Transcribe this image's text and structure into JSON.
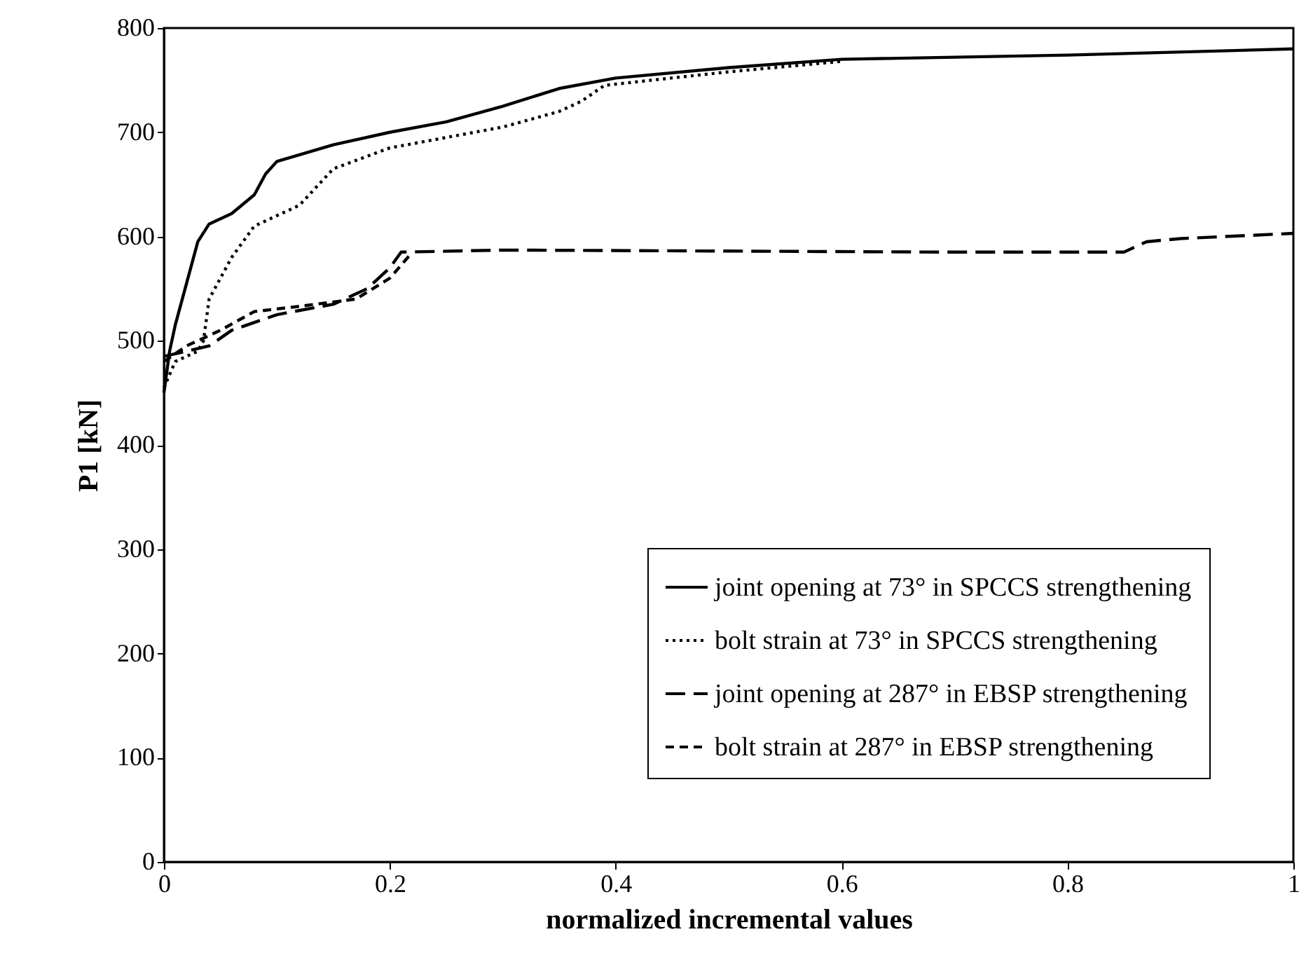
{
  "chart_data": {
    "type": "line",
    "xlabel": "normalized incremental values",
    "ylabel": "P1 [kN]",
    "xlim": [
      0,
      1
    ],
    "xticks": [
      0,
      0.2,
      0.4,
      0.6,
      0.8,
      1
    ],
    "ylim": [
      0,
      800
    ],
    "yticks": [
      0,
      100,
      200,
      300,
      400,
      500,
      600,
      700,
      800
    ],
    "grid": false,
    "legend": "bottom right",
    "marker": "none",
    "series": [
      {
        "name": "joint opening at 73° in SPCCS strengthening",
        "color": "#000000",
        "line_style": "solid",
        "x": [
          0,
          0.005,
          0.01,
          0.02,
          0.03,
          0.04,
          0.06,
          0.08,
          0.09,
          0.1,
          0.15,
          0.2,
          0.25,
          0.3,
          0.35,
          0.4,
          0.5,
          0.6,
          0.8,
          1
        ],
        "values": [
          450,
          490,
          515,
          555,
          595,
          612,
          622,
          640,
          660,
          672,
          688,
          700,
          710,
          725,
          742,
          752,
          762,
          770,
          774,
          780
        ]
      },
      {
        "name": "bolt strain at 73° in SPCCS strengthening",
        "color": "#000000",
        "line_style": "dotted",
        "x": [
          0,
          0.01,
          0.03,
          0.035,
          0.04,
          0.06,
          0.08,
          0.1,
          0.12,
          0.15,
          0.2,
          0.25,
          0.3,
          0.35,
          0.37,
          0.39,
          0.5,
          0.6
        ],
        "values": [
          455,
          480,
          490,
          500,
          540,
          580,
          610,
          620,
          630,
          665,
          685,
          695,
          705,
          720,
          730,
          745,
          758,
          768
        ]
      },
      {
        "name": "joint opening at 287° in EBSP strengthening",
        "color": "#000000",
        "line_style": "dashed",
        "x": [
          0,
          0.02,
          0.04,
          0.06,
          0.1,
          0.15,
          0.18,
          0.2,
          0.21,
          0.3,
          0.5,
          0.7,
          0.85,
          0.87,
          0.9,
          1
        ],
        "values": [
          485,
          490,
          495,
          510,
          525,
          535,
          550,
          570,
          585,
          587,
          586,
          585,
          585,
          595,
          598,
          603
        ]
      },
      {
        "name": "bolt strain at 287° in EBSP strengthening",
        "color": "#000000",
        "line_style": "dashed",
        "x": [
          0,
          0.02,
          0.05,
          0.08,
          0.12,
          0.17,
          0.2,
          0.22
        ],
        "values": [
          480,
          495,
          510,
          528,
          533,
          540,
          560,
          585
        ]
      }
    ]
  }
}
